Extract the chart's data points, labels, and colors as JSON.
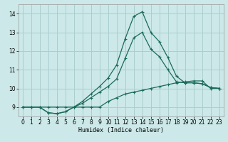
{
  "xlabel": "Humidex (Indice chaleur)",
  "bg_color": "#cce8e8",
  "grid_color": "#aacece",
  "line_color": "#1a6b5a",
  "xlim": [
    -0.5,
    23.5
  ],
  "ylim": [
    8.5,
    14.5
  ],
  "yticks": [
    9,
    10,
    11,
    12,
    13,
    14
  ],
  "xticks": [
    0,
    1,
    2,
    3,
    4,
    5,
    6,
    7,
    8,
    9,
    10,
    11,
    12,
    13,
    14,
    15,
    16,
    17,
    18,
    19,
    20,
    21,
    22,
    23
  ],
  "series1_x": [
    0,
    1,
    2,
    3,
    4,
    5,
    6,
    7,
    8,
    9,
    10,
    11,
    12,
    13,
    14,
    15,
    16,
    17,
    18,
    19,
    20,
    21,
    22,
    23
  ],
  "series1_y": [
    9.0,
    9.0,
    9.0,
    9.0,
    9.0,
    9.0,
    9.0,
    9.0,
    9.0,
    9.0,
    9.3,
    9.5,
    9.7,
    9.8,
    9.9,
    10.0,
    10.1,
    10.2,
    10.3,
    10.35,
    10.4,
    10.4,
    10.0,
    10.0
  ],
  "series2_x": [
    0,
    1,
    2,
    3,
    4,
    5,
    6,
    7,
    8,
    9,
    10,
    11,
    12,
    13,
    14,
    15,
    16,
    17,
    18,
    19,
    20,
    21,
    22,
    23
  ],
  "series2_y": [
    9.0,
    9.0,
    9.0,
    8.7,
    8.65,
    8.75,
    9.0,
    9.2,
    9.5,
    9.8,
    10.1,
    10.5,
    11.6,
    12.7,
    13.0,
    12.1,
    11.7,
    11.0,
    10.35,
    10.3,
    10.3,
    10.25,
    10.05,
    10.0
  ],
  "series3_x": [
    0,
    1,
    2,
    3,
    4,
    5,
    6,
    7,
    8,
    9,
    10,
    11,
    12,
    13,
    14,
    15,
    16,
    17,
    18,
    19,
    20,
    21,
    22,
    23
  ],
  "series3_y": [
    9.0,
    9.0,
    9.0,
    8.7,
    8.65,
    8.75,
    9.0,
    9.3,
    9.7,
    10.1,
    10.55,
    11.25,
    12.65,
    13.85,
    14.1,
    13.0,
    12.5,
    11.65,
    10.65,
    10.3,
    10.3,
    10.25,
    10.05,
    10.0
  ]
}
